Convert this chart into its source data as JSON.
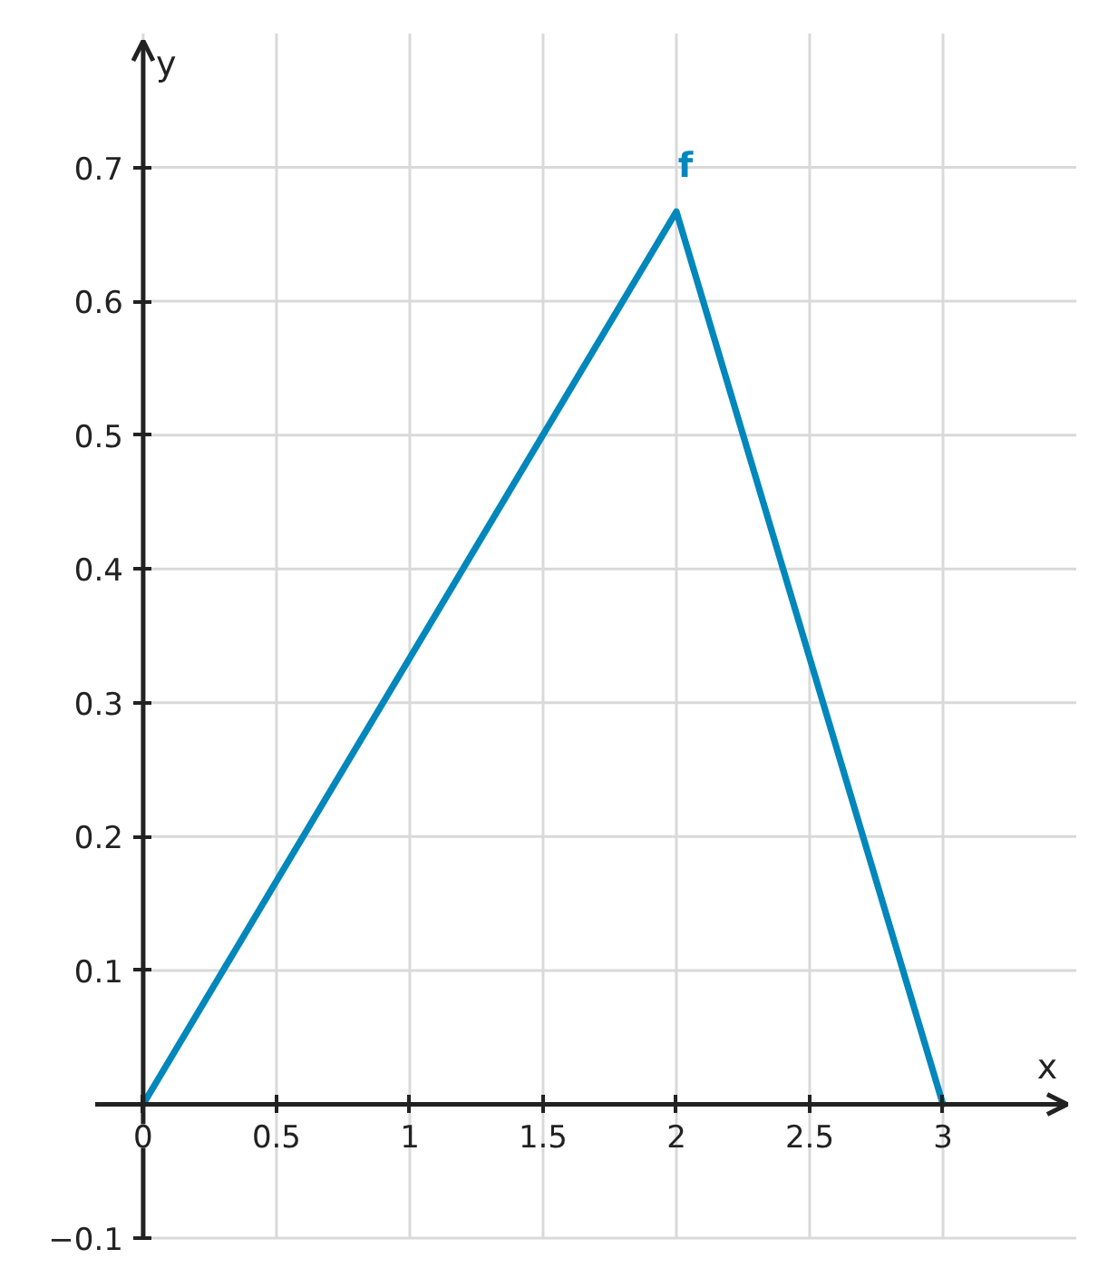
{
  "chart_data": {
    "type": "line",
    "xlabel": "x",
    "ylabel": "y",
    "x": [
      0,
      2,
      3
    ],
    "series": [
      {
        "name": "f",
        "color": "#0087bb",
        "values": [
          0,
          0.667,
          0
        ]
      }
    ],
    "xlim": [
      -0.18,
      3.5
    ],
    "ylim": [
      -0.1,
      0.8
    ],
    "xticks": [
      0,
      0.5,
      1,
      1.5,
      2,
      2.5,
      3
    ],
    "yticks": [
      -0.1,
      0.1,
      0.2,
      0.3,
      0.4,
      0.5,
      0.6,
      0.7
    ],
    "grid": true
  }
}
